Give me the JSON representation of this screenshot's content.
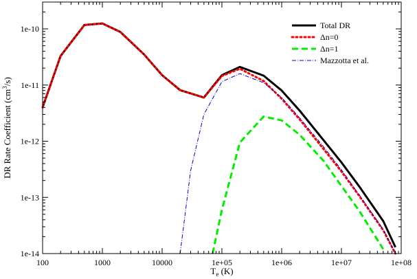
{
  "chart_data": {
    "type": "line",
    "xscale": "log",
    "yscale": "log",
    "xlim": [
      100,
      100000000
    ],
    "ylim": [
      1e-14,
      3e-10
    ],
    "xlabel": "T",
    "xlabel_sub": "e",
    "xlabel_unit": " (K)",
    "ylabel": "DR Rate Coefficient (cm",
    "ylabel_sup": "3",
    "ylabel_end": "/s)",
    "x_ticks": [
      {
        "value": 100,
        "label": "100"
      },
      {
        "value": 1000,
        "label": "1000"
      },
      {
        "value": 10000,
        "label": "10000"
      },
      {
        "value": 100000,
        "label": "1e+05"
      },
      {
        "value": 1000000,
        "label": "1e+06"
      },
      {
        "value": 10000000,
        "label": "1e+07"
      },
      {
        "value": 100000000,
        "label": "1e+08"
      }
    ],
    "y_ticks": [
      {
        "value": 1e-14,
        "label": "1e-14"
      },
      {
        "value": 1e-13,
        "label": "1e-13"
      },
      {
        "value": 1e-12,
        "label": "1e-12"
      },
      {
        "value": 1e-11,
        "label": "1e-11"
      },
      {
        "value": 1e-10,
        "label": "1e-10"
      }
    ],
    "legend_position": "top-right",
    "series": [
      {
        "name": "Total DR",
        "color": "#000000",
        "style": "solid",
        "x": [
          100,
          200,
          500,
          1000,
          2000,
          5000,
          10000,
          20000,
          50000,
          100000,
          200000,
          500000,
          1000000,
          2000000,
          5000000,
          10000000,
          20000000,
          50000000,
          80000000
        ],
        "y": [
          4e-12,
          3.3e-11,
          1.17e-10,
          1.25e-10,
          8.8e-11,
          3.5e-11,
          1.5e-11,
          8.1e-12,
          6e-12,
          1.5e-11,
          2.1e-11,
          1.47e-11,
          8e-12,
          3.5e-12,
          1.05e-12,
          4.2e-13,
          1.55e-13,
          3.8e-14,
          1.3e-14
        ]
      },
      {
        "name": "Δn=0",
        "color": "#ff0000",
        "style": "dotted",
        "x": [
          100,
          200,
          500,
          1000,
          2000,
          5000,
          10000,
          20000,
          50000,
          100000,
          200000,
          500000,
          1000000,
          2000000,
          5000000,
          10000000,
          20000000,
          50000000,
          80000000
        ],
        "y": [
          4e-12,
          3.3e-11,
          1.17e-10,
          1.25e-10,
          8.8e-11,
          3.5e-11,
          1.5e-11,
          8.1e-12,
          6e-12,
          1.45e-11,
          1.95e-11,
          1.18e-11,
          5.7e-12,
          2.45e-12,
          7.3e-13,
          2.9e-13,
          1.05e-13,
          2.6e-14,
          1e-14
        ]
      },
      {
        "name": "Δn=1",
        "color": "#00ee00",
        "style": "dashed",
        "x": [
          70000,
          100000,
          200000,
          500000,
          1000000,
          2000000,
          5000000,
          10000000,
          20000000,
          50000000
        ],
        "y": [
          1e-14,
          6e-14,
          9.5e-13,
          2.75e-12,
          2.35e-12,
          1.3e-12,
          4.5e-13,
          1.6e-13,
          5.7e-14,
          1.2e-14
        ]
      },
      {
        "name": "Mazzotta et al.",
        "color": "#0000cc",
        "style": "dashdot",
        "x": [
          20000,
          30000,
          50000,
          100000,
          200000,
          500000,
          1000000,
          2000000,
          5000000,
          10000000,
          20000000,
          50000000,
          80000000
        ],
        "y": [
          1e-14,
          3e-13,
          3e-12,
          1.15e-11,
          1.6e-11,
          1.1e-11,
          6e-12,
          2.6e-12,
          8e-13,
          3.1e-13,
          1.1e-13,
          2.7e-14,
          1e-14
        ]
      }
    ]
  }
}
